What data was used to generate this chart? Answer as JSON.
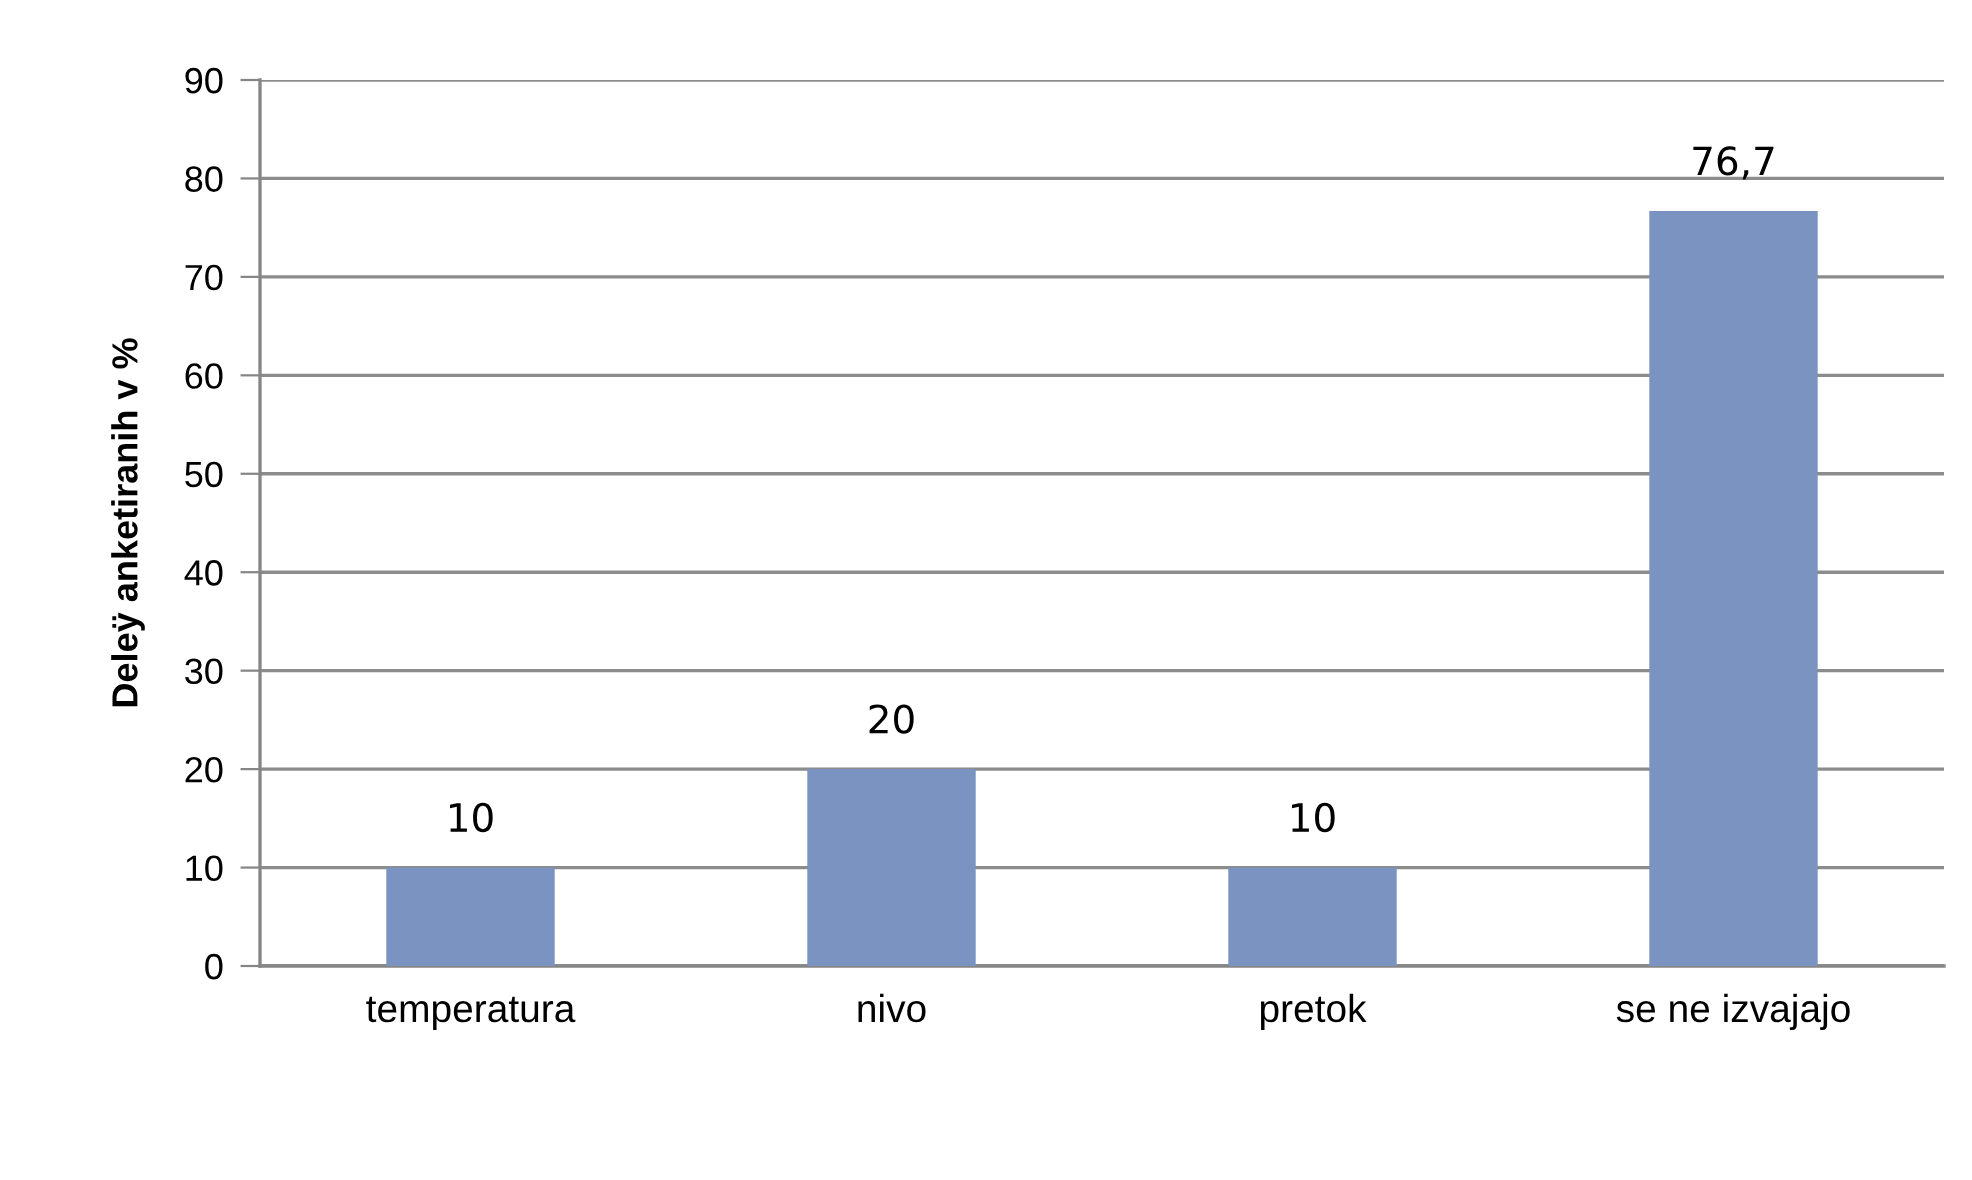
{
  "chart_data": {
    "type": "bar",
    "ylabel": "Deleÿ anketiranih v %",
    "categories": [
      "temperatura",
      "nivo",
      "pretok",
      "se ne izvajajo"
    ],
    "values": [
      10,
      20,
      10,
      76.7
    ],
    "value_labels": [
      "10",
      "20",
      "10",
      "76,7"
    ],
    "color": "#7a93c0",
    "ylim": [
      0,
      90
    ],
    "yticks": [
      0,
      10,
      20,
      30,
      40,
      50,
      60,
      70,
      80,
      90
    ],
    "grid": "y",
    "legend": false
  }
}
